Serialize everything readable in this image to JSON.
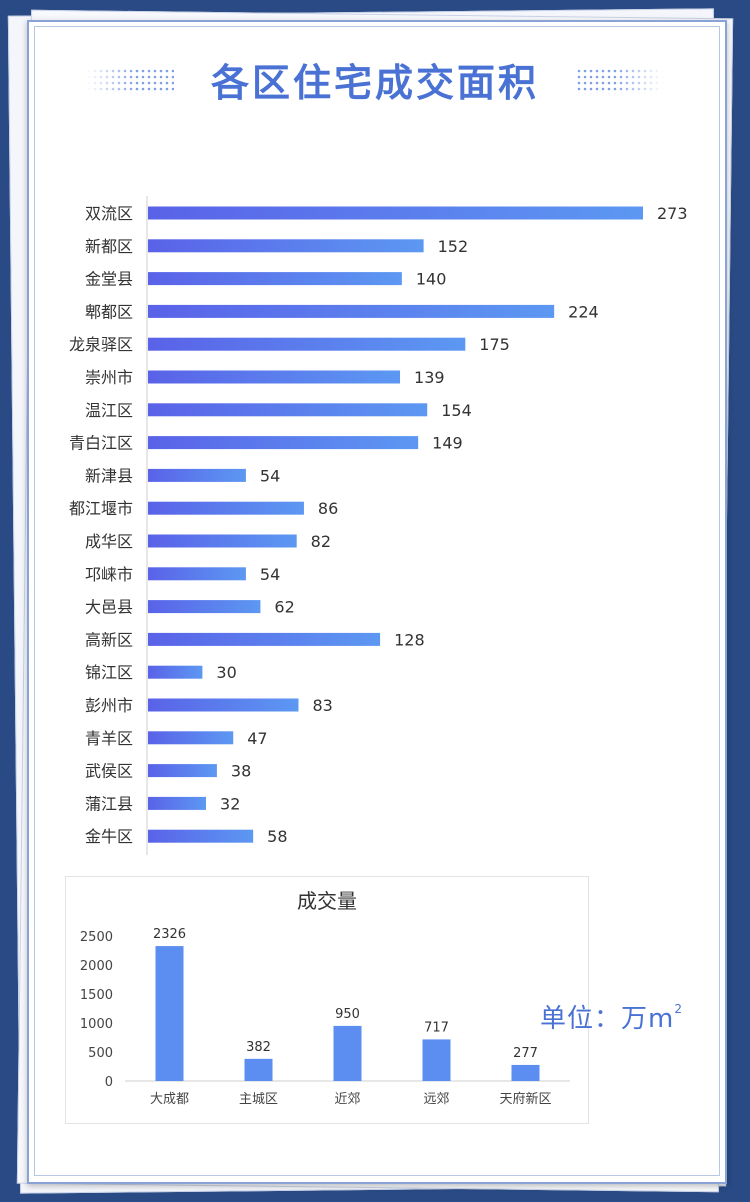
{
  "title": "各区住宅成交面积",
  "unit_label": "单位：万m",
  "unit_sup": "2",
  "colors": {
    "background": "#294a85",
    "bar": "#5b8ef0",
    "title": "#4a72d4"
  },
  "chart_data": [
    {
      "type": "bar",
      "orientation": "horizontal",
      "title": "",
      "categories": [
        "双流区",
        "新都区",
        "金堂县",
        "郫都区",
        "龙泉驿区",
        "崇州市",
        "温江区",
        "青白江区",
        "新津县",
        "都江堰市",
        "成华区",
        "邛崃市",
        "大邑县",
        "高新区",
        "锦江区",
        "彭州市",
        "青羊区",
        "武侯区",
        "蒲江县",
        "金牛区"
      ],
      "values": [
        273,
        152,
        140,
        224,
        175,
        139,
        154,
        149,
        54,
        86,
        82,
        54,
        62,
        128,
        30,
        83,
        47,
        38,
        32,
        58
      ],
      "data_labels": true,
      "grid": false
    },
    {
      "type": "bar",
      "orientation": "vertical",
      "title": "成交量",
      "categories": [
        "大成都",
        "主城区",
        "近郊",
        "远郊",
        "天府新区"
      ],
      "values": [
        2326,
        382,
        950,
        717,
        277
      ],
      "yticks": [
        0,
        500,
        1000,
        1500,
        2000,
        2500
      ],
      "ylim": [
        0,
        2500
      ],
      "data_labels": true,
      "grid": false
    }
  ]
}
